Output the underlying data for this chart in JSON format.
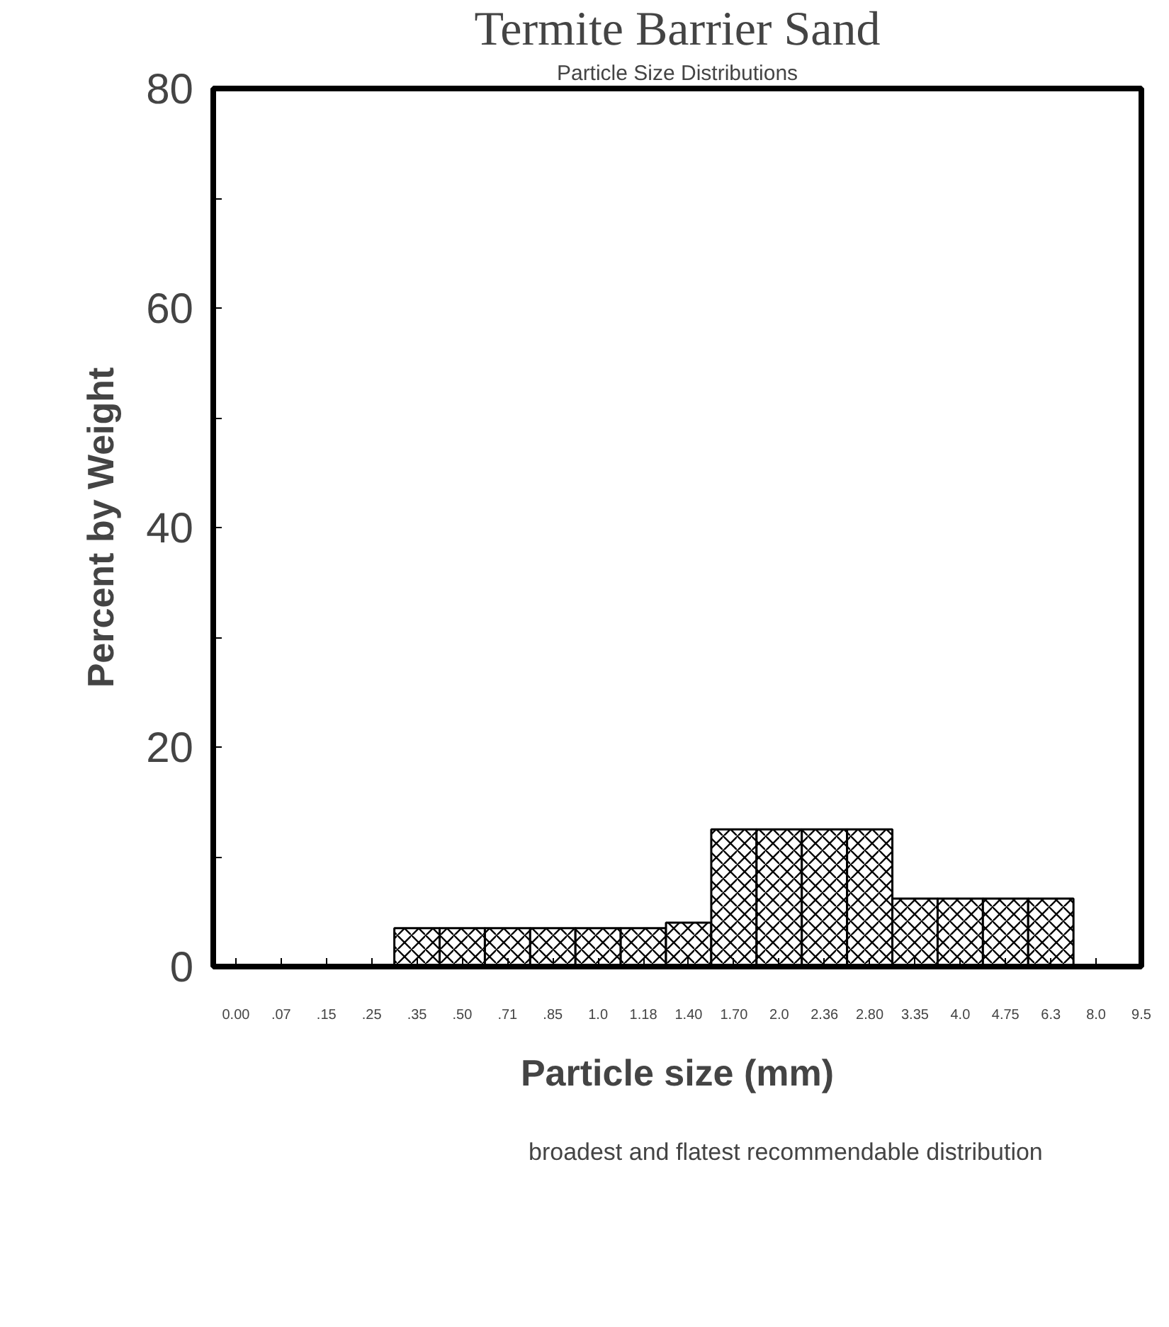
{
  "chart_data": {
    "type": "bar",
    "title": "Termite Barrier Sand",
    "subtitle": "Particle Size Distributions",
    "xlabel": "Particle size (mm)",
    "ylabel": "Percent by Weight",
    "categories": [
      "0.00",
      ".07",
      ".15",
      ".25",
      ".35",
      ".50",
      ".71",
      ".85",
      "1.0",
      "1.18",
      "1.40",
      "1.70",
      "2.0",
      "2.36",
      "2.80",
      "3.35",
      "4.0",
      "4.75",
      "6.3",
      "8.0",
      "9.5"
    ],
    "series": [
      {
        "name": "broadest and flatest recommendable distribution",
        "color": "#ffffff",
        "values": [
          null,
          null,
          null,
          null,
          3.5,
          3.5,
          3.5,
          3.5,
          3.5,
          3.5,
          4,
          12.5,
          12.5,
          12.5,
          12.5,
          6.2,
          6.2,
          6.2,
          6.2,
          null,
          null
        ]
      }
    ],
    "ylim": [
      0,
      80
    ],
    "yticks": [
      0,
      {
        "value": 10,
        "label": null
      },
      20,
      {
        "value": 30,
        "label": null
      },
      40,
      {
        "value": 50,
        "label": null
      },
      60,
      {
        "value": 70,
        "label": null
      },
      80
    ],
    "grid": false,
    "legend": "bottom"
  }
}
